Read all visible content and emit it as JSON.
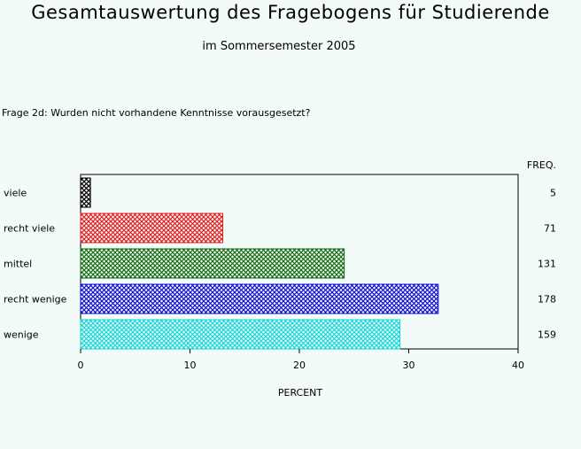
{
  "header": {
    "title": "Gesamtauswertung des Fragebogens für Studierende",
    "subtitle": "im Sommersemester 2005",
    "question": "Frage 2d: Wurden nicht vorhandene Kenntnisse vorausgesetzt?"
  },
  "chart_data": {
    "type": "bar",
    "orientation": "horizontal",
    "categories": [
      "viele",
      "recht viele",
      "mittel",
      "recht wenige",
      "wenige"
    ],
    "values": [
      0.9,
      13.0,
      24.1,
      32.7,
      29.2
    ],
    "freq_header": "FREQ.",
    "freq": [
      5,
      71,
      131,
      178,
      159
    ],
    "colors": [
      "#000000",
      "#e02020",
      "#106e10",
      "#1010d0",
      "#10d8d8"
    ],
    "pattern": "crosshatch",
    "xlabel": "PERCENT",
    "xlim": [
      0,
      40
    ],
    "xticks": [
      0,
      10,
      20,
      30,
      40
    ],
    "grid": false
  }
}
